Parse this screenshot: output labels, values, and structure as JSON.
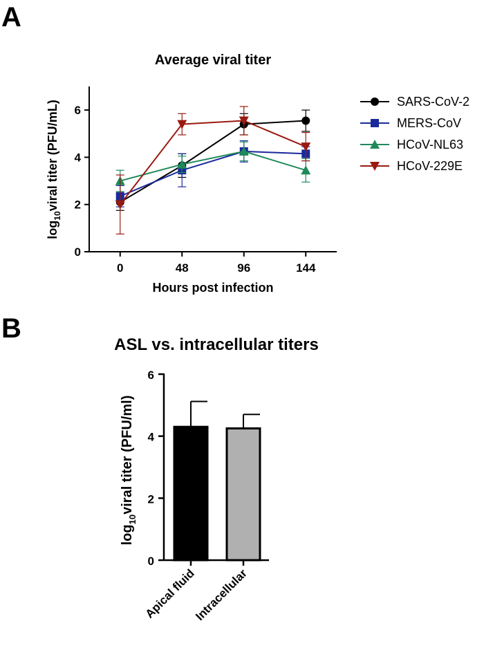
{
  "chart_data": [
    {
      "panel": "A",
      "type": "line",
      "title": "Average viral titer",
      "xlabel": "Hours post infection",
      "ylabel_main": "log",
      "ylabel_sub": "10",
      "ylabel_rest": "viral titer (PFU/mL)",
      "x": [
        0,
        48,
        96,
        144
      ],
      "x_ticks": [
        "0",
        "48",
        "96",
        "144"
      ],
      "ylim": [
        0,
        7
      ],
      "y_ticks": [
        "0",
        "2",
        "4",
        "6"
      ],
      "grid": false,
      "legend_position": "right",
      "series": [
        {
          "name": "SARS-CoV-2",
          "marker": "circle",
          "color": "#000000",
          "values": [
            2.1,
            3.65,
            5.4,
            5.55
          ],
          "err": [
            0.35,
            0.5,
            0.45,
            0.45
          ]
        },
        {
          "name": "MERS-CoV",
          "marker": "square",
          "color": "#1a2a9a",
          "values": [
            2.35,
            3.45,
            4.25,
            4.15
          ],
          "err": [
            0.45,
            0.7,
            0.45,
            0.3
          ]
        },
        {
          "name": "HCoV-NL63",
          "marker": "triangle-up",
          "color": "#1e8a5a",
          "values": [
            3.0,
            3.7,
            4.25,
            3.45
          ],
          "err": [
            0.45,
            0.35,
            0.4,
            0.5
          ]
        },
        {
          "name": "HCoV-229E",
          "marker": "triangle-down",
          "color": "#9a1a10",
          "values": [
            2.0,
            5.4,
            5.55,
            4.45
          ],
          "err": [
            1.25,
            0.45,
            0.6,
            0.6
          ]
        }
      ]
    },
    {
      "panel": "B",
      "type": "bar",
      "title": "ASL vs. intracellular titers",
      "ylabel_main": "log",
      "ylabel_sub": "10",
      "ylabel_rest": "viral titer (PFU/ml)",
      "categories": [
        "Apical fluid",
        "Intracellular"
      ],
      "values": [
        4.3,
        4.25
      ],
      "err": [
        0.82,
        0.45
      ],
      "colors": [
        "#000000",
        "#b0b0b0"
      ],
      "ylim": [
        0,
        6
      ],
      "y_ticks": [
        "0",
        "2",
        "4",
        "6"
      ],
      "grid": false
    }
  ],
  "panel_labels": {
    "a": "A",
    "b": "B"
  }
}
